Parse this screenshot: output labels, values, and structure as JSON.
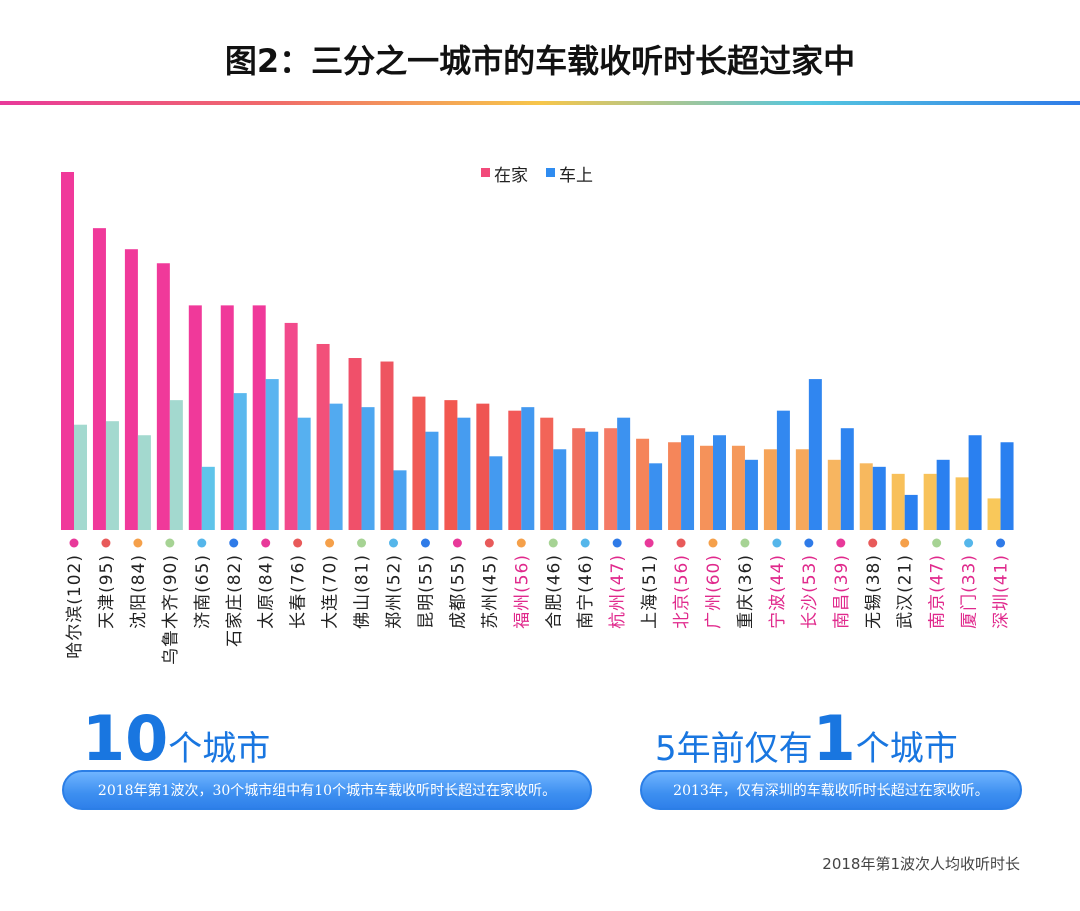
{
  "title": "图2：三分之一城市的车载收听时长超过家中",
  "chart_data": {
    "type": "bar",
    "legend": [
      "在家",
      "车上"
    ],
    "categories": [
      "哈尔滨(102)",
      "天津(95)",
      "沈阳(84)",
      "乌鲁木齐(90)",
      "济南(65)",
      "石家庄(82)",
      "太原(84)",
      "长春(76)",
      "大连(70)",
      "佛山(81)",
      "郑州(52)",
      "昆明(55)",
      "成都(55)",
      "苏州(45)",
      "福州(56)",
      "合肥(46)",
      "南宁(46)",
      "杭州(47)",
      "上海(51)",
      "北京(56)",
      "广州(60)",
      "重庆(36)",
      "宁波(44)",
      "长沙(53)",
      "南昌(39)",
      "无锡(38)",
      "武汉(21)",
      "南京(47)",
      "厦门(33)",
      "深圳(41)"
    ],
    "highlighted": [
      false,
      false,
      false,
      false,
      false,
      false,
      false,
      false,
      false,
      false,
      false,
      false,
      false,
      false,
      true,
      false,
      false,
      true,
      false,
      true,
      true,
      false,
      true,
      true,
      true,
      false,
      false,
      true,
      true,
      true
    ],
    "series": [
      {
        "name": "在家",
        "values": [
          102,
          86,
          80,
          76,
          64,
          64,
          64,
          59,
          53,
          49,
          48,
          38,
          37,
          36,
          34,
          32,
          29,
          29,
          26,
          25,
          24,
          24,
          23,
          23,
          20,
          19,
          16,
          16,
          15,
          9
        ]
      },
      {
        "name": "车上",
        "values": [
          30,
          31,
          27,
          37,
          18,
          39,
          43,
          32,
          36,
          35,
          17,
          28,
          32,
          21,
          35,
          23,
          28,
          32,
          19,
          27,
          27,
          20,
          34,
          43,
          29,
          18,
          10,
          20,
          27,
          25
        ]
      }
    ],
    "home_colors": [
      "#f0399a",
      "#f0399a",
      "#f0399a",
      "#f0399a",
      "#f0399a",
      "#f0399a",
      "#f0399a",
      "#f24a8c",
      "#f2507a",
      "#f0506a",
      "#ee5560",
      "#f05a55",
      "#f25850",
      "#ef5552",
      "#f25858",
      "#f26458",
      "#f07060",
      "#f47a66",
      "#f5845a",
      "#f5865a",
      "#f5925a",
      "#f5995a",
      "#f6a458",
      "#f6a85c",
      "#f7b560",
      "#f7b85e",
      "#f8c05a",
      "#f8c25a",
      "#f8c25a",
      "#f9c85a"
    ],
    "car_colors": [
      "#a3d9cf",
      "#a3d9cf",
      "#a3d9cf",
      "#a3d9cf",
      "#5fc4ea",
      "#5ab8ee",
      "#5ab4f0",
      "#56b0f0",
      "#52aaf0",
      "#4da6f0",
      "#4aa2f0",
      "#48a0f0",
      "#469cf0",
      "#449af0",
      "#4298f0",
      "#4096f0",
      "#3e94f0",
      "#3c92f0",
      "#3a90f0",
      "#388ef0",
      "#368cf0",
      "#348af0",
      "#3288f0",
      "#3086f0",
      "#2e84f0",
      "#2c82f0",
      "#2a80f0",
      "#2a80f0",
      "#2a80f0",
      "#2a80f0"
    ],
    "dot_colors": [
      "#e8399a",
      "#e85a5a",
      "#f5a04a",
      "#a6d394",
      "#55b6ea",
      "#2f7be8",
      "#e8399a",
      "#e85a5a",
      "#f5a04a",
      "#a6d394",
      "#55b6ea",
      "#2f7be8",
      "#e8399a",
      "#e85a5a",
      "#f5a04a",
      "#a6d394",
      "#55b6ea",
      "#2f7be8",
      "#e8399a",
      "#e85a5a",
      "#f5a04a",
      "#a6d394",
      "#55b6ea",
      "#2f7be8",
      "#e8399a",
      "#e85a5a",
      "#f5a04a",
      "#a6d394",
      "#55b6ea",
      "#2f7be8"
    ],
    "ylim": [
      0,
      110
    ]
  },
  "left_stat": {
    "number": "10",
    "text": "个城市",
    "desc": "2018年第1波次，30个城市组中有10个城市车载收听时长超过在家收听。"
  },
  "right_stat": {
    "prefix": "5年前仅有",
    "number": "1",
    "text": "个城市",
    "desc": "2013年，仅有深圳的车载收听时长超过在家收听。"
  },
  "footnote": "2018年第1波次人均收听时长"
}
